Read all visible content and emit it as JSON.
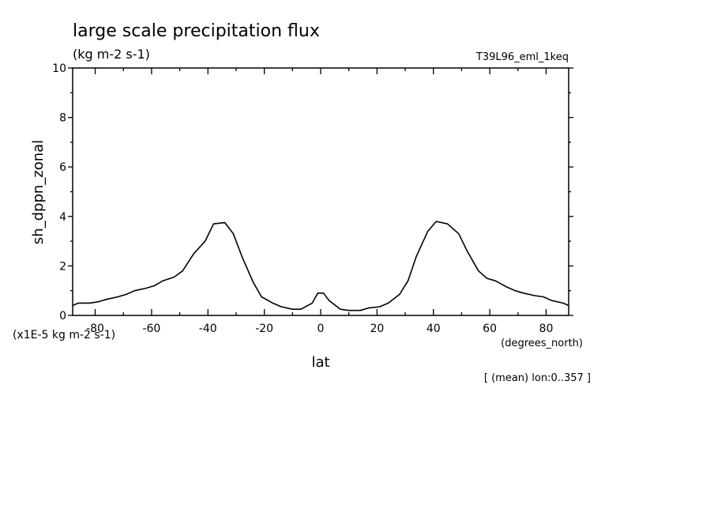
{
  "header": {
    "title": "large scale precipitation flux",
    "units": "(kg m-2 s-1)",
    "experiment": "T39L96_eml_1keq"
  },
  "footer": {
    "scale_note": "(x1E-5 kg m-2 s-1)",
    "x_units": "(degrees_north)",
    "averaging_note": "[ (mean) lon:0..357 ]"
  },
  "chart_data": {
    "type": "line",
    "title": "large scale precipitation flux",
    "xlabel": "lat",
    "ylabel": "sh_dppn_zonal",
    "xlim": [
      -88,
      88
    ],
    "ylim": [
      0,
      10
    ],
    "xticks": [
      -80,
      -60,
      -40,
      -20,
      0,
      20,
      40,
      60,
      80
    ],
    "xtick_labels": [
      "-80",
      "-60",
      "-40",
      "-20",
      "0",
      "20",
      "40",
      "60",
      "80"
    ],
    "yticks": [
      0,
      2,
      4,
      6,
      8,
      10
    ],
    "ytick_labels": [
      "0",
      "2",
      "4",
      "6",
      "8",
      "10"
    ],
    "grid": false,
    "series": [
      {
        "x": [
          -88,
          -86,
          -82,
          -79,
          -76,
          -72,
          -69,
          -66,
          -62,
          -59,
          -56,
          -52,
          -49,
          -45,
          -41,
          -38,
          -34,
          -31,
          -28,
          -24,
          -21,
          -17,
          -14,
          -10,
          -7,
          -3,
          -1,
          1,
          3,
          7,
          10,
          14,
          17,
          21,
          24,
          28,
          31,
          34,
          38,
          41,
          45,
          49,
          52,
          56,
          59,
          62,
          66,
          69,
          72,
          76,
          79,
          82,
          86,
          88
        ],
        "y": [
          0.4,
          0.5,
          0.5,
          0.55,
          0.65,
          0.75,
          0.85,
          1.0,
          1.1,
          1.2,
          1.4,
          1.55,
          1.8,
          2.5,
          3.0,
          3.7,
          3.75,
          3.3,
          2.4,
          1.35,
          0.75,
          0.5,
          0.35,
          0.25,
          0.25,
          0.5,
          0.9,
          0.9,
          0.6,
          0.25,
          0.2,
          0.2,
          0.3,
          0.35,
          0.5,
          0.85,
          1.4,
          2.4,
          3.4,
          3.8,
          3.7,
          3.3,
          2.6,
          1.8,
          1.5,
          1.4,
          1.15,
          1.0,
          0.9,
          0.8,
          0.75,
          0.6,
          0.5,
          0.4
        ]
      }
    ]
  }
}
